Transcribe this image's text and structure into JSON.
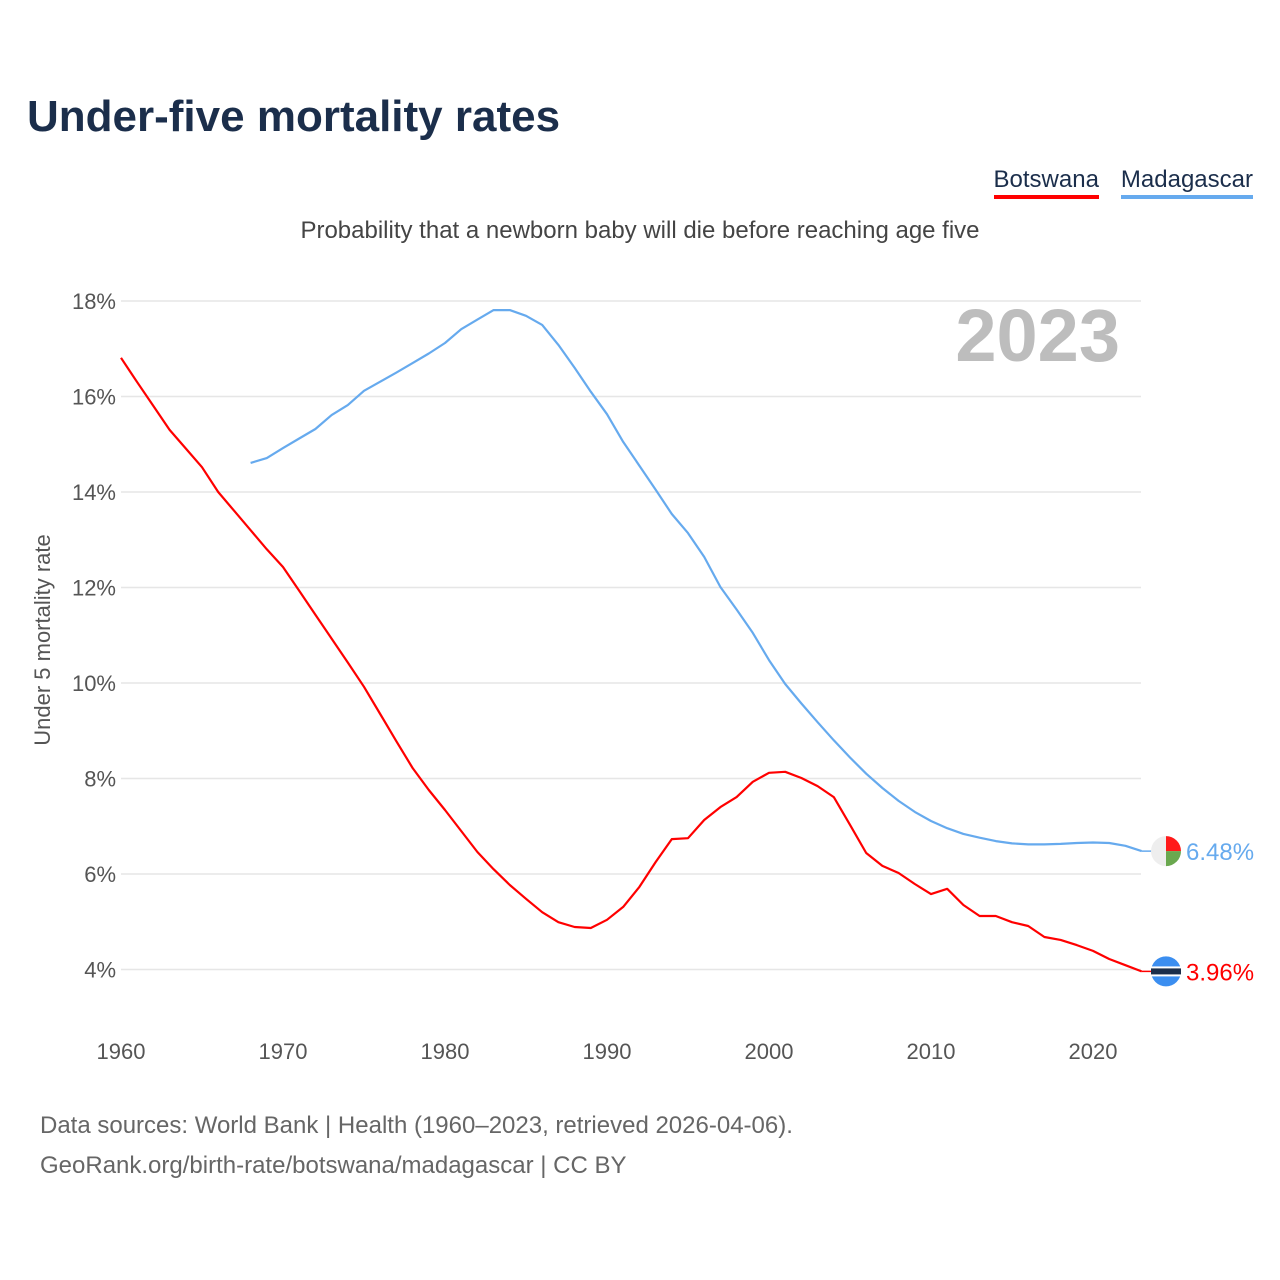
{
  "title": "Under-five mortality rates",
  "subtitle": "Probability that a newborn baby will die before reaching age five",
  "footer": {
    "line1": "Data sources: World Bank | Health (1960–2023, retrieved 2026-04-06).",
    "line2": "GeoRank.org/birth-rate/botswana/madagascar | CC BY"
  },
  "chart_data": {
    "type": "line",
    "title": "Under-five mortality rates",
    "ylabel": "Under 5 mortality rate",
    "xlabel": "",
    "year_label": "2023",
    "xlim": [
      1960,
      2023
    ],
    "ylim": [
      3,
      18.5
    ],
    "xticks": [
      1960,
      1970,
      1980,
      1990,
      2000,
      2010,
      2020
    ],
    "yticks": [
      4,
      6,
      8,
      10,
      12,
      14,
      16,
      18
    ],
    "ytick_labels": [
      "4%",
      "6%",
      "8%",
      "10%",
      "12%",
      "14%",
      "16%",
      "18%"
    ],
    "grid": true,
    "legend_position": "top-right",
    "series": [
      {
        "name": "Botswana",
        "color": "#ff0000",
        "end_label": "3.96%",
        "x": [
          1960,
          1961,
          1962,
          1963,
          1964,
          1965,
          1966,
          1967,
          1968,
          1969,
          1970,
          1971,
          1972,
          1973,
          1974,
          1975,
          1976,
          1977,
          1978,
          1979,
          1980,
          1981,
          1982,
          1983,
          1984,
          1985,
          1986,
          1987,
          1988,
          1989,
          1990,
          1991,
          1992,
          1993,
          1994,
          1995,
          1996,
          1997,
          1998,
          1999,
          2000,
          2001,
          2002,
          2003,
          2004,
          2005,
          2006,
          2007,
          2008,
          2009,
          2010,
          2011,
          2012,
          2013,
          2014,
          2015,
          2016,
          2017,
          2018,
          2019,
          2020,
          2021,
          2022,
          2023
        ],
        "values": [
          16.81,
          16.3,
          15.8,
          15.3,
          14.91,
          14.52,
          14.0,
          13.6,
          13.2,
          12.8,
          12.43,
          11.93,
          11.43,
          10.93,
          10.43,
          9.92,
          9.35,
          8.78,
          8.22,
          7.76,
          7.34,
          6.9,
          6.46,
          6.1,
          5.77,
          5.48,
          5.2,
          4.99,
          4.89,
          4.87,
          5.04,
          5.31,
          5.73,
          6.25,
          6.73,
          6.75,
          7.13,
          7.4,
          7.61,
          7.93,
          8.12,
          8.14,
          8.01,
          7.84,
          7.61,
          7.03,
          6.44,
          6.17,
          6.02,
          5.79,
          5.58,
          5.69,
          5.35,
          5.12,
          5.12,
          4.99,
          4.91,
          4.68,
          4.62,
          4.51,
          4.39,
          4.22,
          4.09,
          3.96
        ]
      },
      {
        "name": "Madagascar",
        "color": "#66aaee",
        "end_label": "6.48%",
        "x": [
          1968,
          1969,
          1970,
          1971,
          1972,
          1973,
          1974,
          1975,
          1976,
          1977,
          1978,
          1979,
          1980,
          1981,
          1982,
          1983,
          1984,
          1985,
          1986,
          1987,
          1988,
          1989,
          1990,
          1991,
          1992,
          1993,
          1994,
          1995,
          1996,
          1997,
          1998,
          1999,
          2000,
          2001,
          2002,
          2003,
          2004,
          2005,
          2006,
          2007,
          2008,
          2009,
          2010,
          2011,
          2012,
          2013,
          2014,
          2015,
          2016,
          2017,
          2018,
          2019,
          2020,
          2021,
          2022,
          2023
        ],
        "values": [
          14.61,
          14.71,
          14.92,
          15.12,
          15.32,
          15.61,
          15.82,
          16.12,
          16.31,
          16.5,
          16.7,
          16.9,
          17.12,
          17.41,
          17.61,
          17.81,
          17.81,
          17.69,
          17.5,
          17.08,
          16.6,
          16.1,
          15.63,
          15.05,
          14.55,
          14.05,
          13.54,
          13.14,
          12.64,
          12.01,
          11.54,
          11.05,
          10.48,
          9.98,
          9.57,
          9.18,
          8.8,
          8.44,
          8.1,
          7.8,
          7.53,
          7.3,
          7.11,
          6.96,
          6.84,
          6.76,
          6.69,
          6.64,
          6.62,
          6.62,
          6.63,
          6.65,
          6.66,
          6.65,
          6.59,
          6.48
        ]
      }
    ]
  }
}
